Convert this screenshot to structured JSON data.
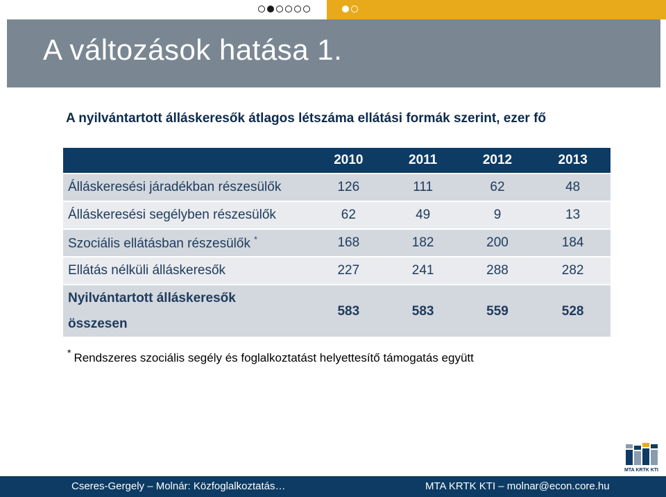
{
  "nav": {
    "left_dots": [
      false,
      true,
      false,
      false,
      false,
      false
    ],
    "right_dots": [
      true,
      false
    ]
  },
  "slide": {
    "title": "A változások hatása 1.",
    "subtitle": "A nyilvántartott álláskeresők átlagos létszáma ellátási formák szerint, ezer fő"
  },
  "table": {
    "headers": [
      "",
      "2010",
      "2011",
      "2012",
      "2013"
    ],
    "rows": [
      {
        "label": "Álláskeresési járadékban részesülők",
        "values": [
          "126",
          "111",
          "62",
          "48"
        ]
      },
      {
        "label": "Álláskeresési segélyben részesülők",
        "values": [
          "62",
          "49",
          "9",
          "13"
        ]
      },
      {
        "label": "Szociális ellátásban részesülők",
        "marker": "*",
        "values": [
          "168",
          "182",
          "200",
          "184"
        ]
      },
      {
        "label": "Ellátás nélküli álláskeresők",
        "values": [
          "227",
          "241",
          "288",
          "282"
        ]
      },
      {
        "label_line1": "Nyilvántartott álláskeresők",
        "label_line2": "összesen",
        "values": [
          "583",
          "583",
          "559",
          "528"
        ]
      }
    ]
  },
  "footnote": {
    "marker": "*",
    "text": "Rendszeres szociális segély és foglalkoztatást helyettesítő támogatás együtt"
  },
  "logo": {
    "text": "MTA KRTK KTI"
  },
  "footer": {
    "left": "Cseres-Gergely – Molnár: Közfoglalkoztatás…",
    "right": "MTA KRTK KTI – molnar@econ.core.hu"
  },
  "colors": {
    "accent_orange": "#e8a91b",
    "title_band": "#7a8793",
    "header_navy": "#0d3b63",
    "text_navy": "#1e3a5c"
  }
}
